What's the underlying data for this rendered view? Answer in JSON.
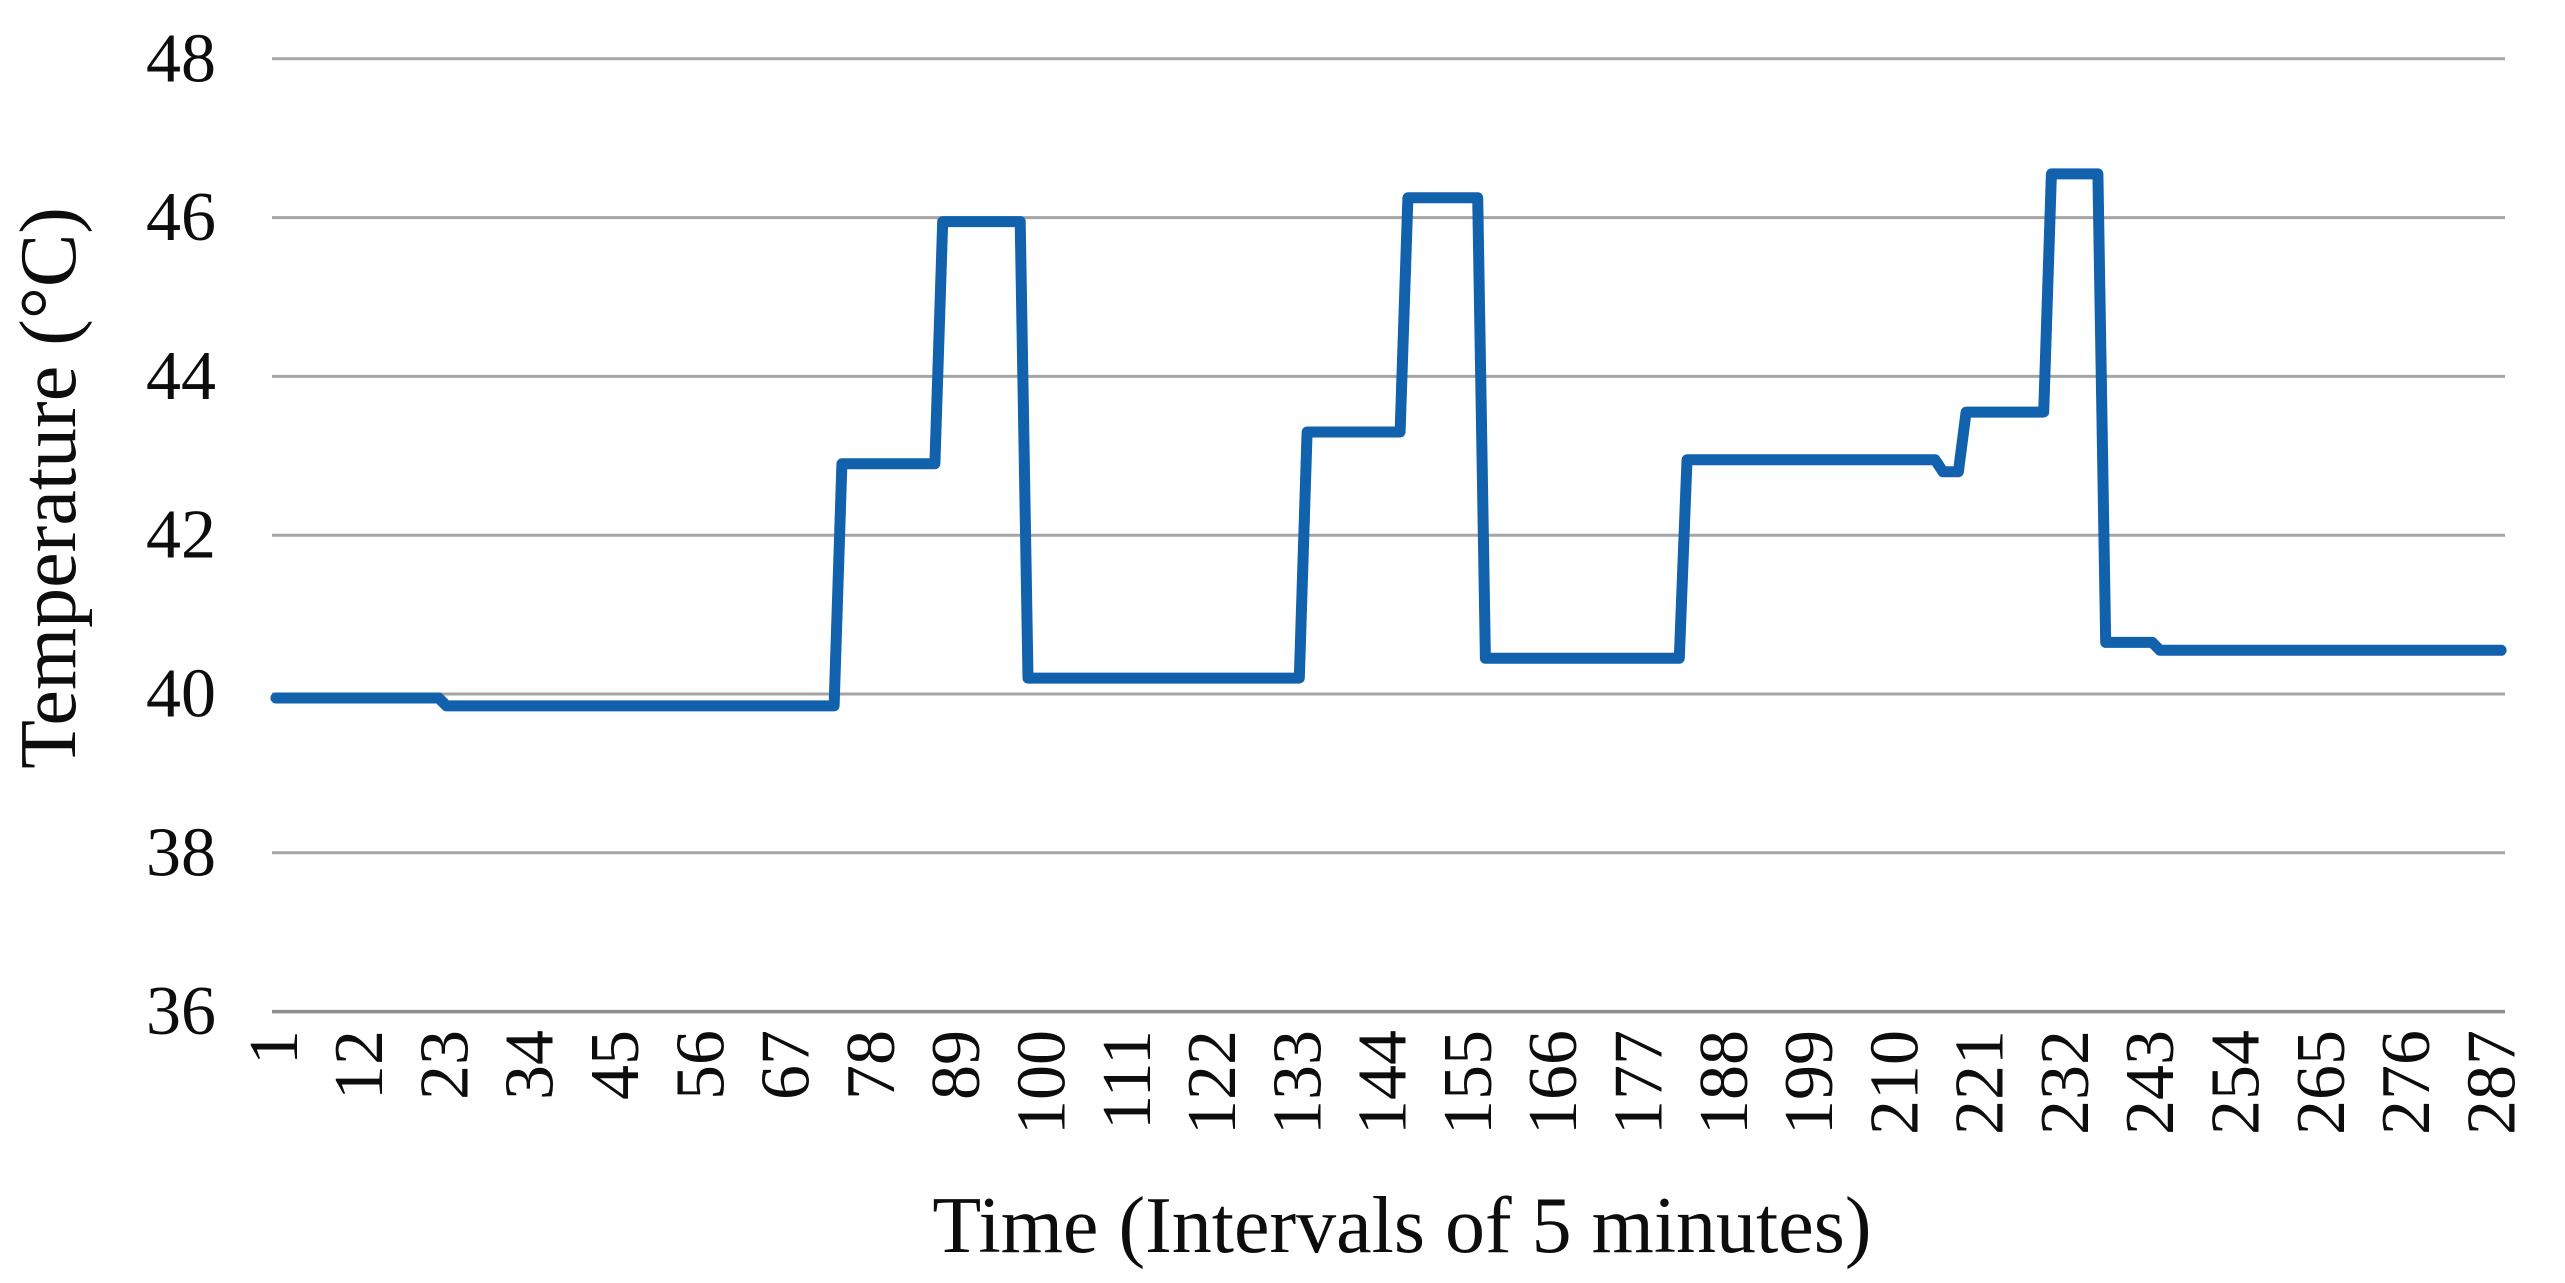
{
  "chart_data": {
    "type": "line",
    "subtype": "step",
    "title": "",
    "xlabel": "Time (Intervals of 5 minutes)",
    "ylabel": "Temperature (°C)",
    "ylim": [
      36,
      48
    ],
    "yticks": [
      36,
      38,
      40,
      42,
      44,
      46,
      48
    ],
    "xticks": [
      1,
      12,
      23,
      34,
      45,
      56,
      67,
      78,
      89,
      100,
      111,
      122,
      133,
      144,
      155,
      166,
      177,
      188,
      199,
      210,
      221,
      232,
      243,
      254,
      265,
      276,
      287
    ],
    "x_total_points": 288,
    "grid": "horizontal",
    "legend": "none",
    "series": [
      {
        "name": "Temperature",
        "color": "#1261AC",
        "segments": [
          {
            "from": 1,
            "to": 22,
            "value": 39.95
          },
          {
            "from": 23,
            "to": 73,
            "value": 39.85
          },
          {
            "from": 74,
            "to": 86,
            "value": 42.9
          },
          {
            "from": 87,
            "to": 97,
            "value": 45.95
          },
          {
            "from": 98,
            "to": 133,
            "value": 40.2
          },
          {
            "from": 134,
            "to": 146,
            "value": 43.3
          },
          {
            "from": 147,
            "to": 156,
            "value": 46.25
          },
          {
            "from": 157,
            "to": 182,
            "value": 40.45
          },
          {
            "from": 183,
            "to": 215,
            "value": 42.95
          },
          {
            "from": 216,
            "to": 218,
            "value": 42.8
          },
          {
            "from": 219,
            "to": 229,
            "value": 43.55
          },
          {
            "from": 230,
            "to": 236,
            "value": 46.55
          },
          {
            "from": 237,
            "to": 243,
            "value": 40.65
          },
          {
            "from": 244,
            "to": 288,
            "value": 40.55
          }
        ]
      }
    ],
    "colors": {
      "line": "#1261AC",
      "gridline": "#A6A6A6",
      "axis_line": "#8F8F8F",
      "text": "#0D0D0D",
      "background": "#FFFFFF"
    }
  }
}
